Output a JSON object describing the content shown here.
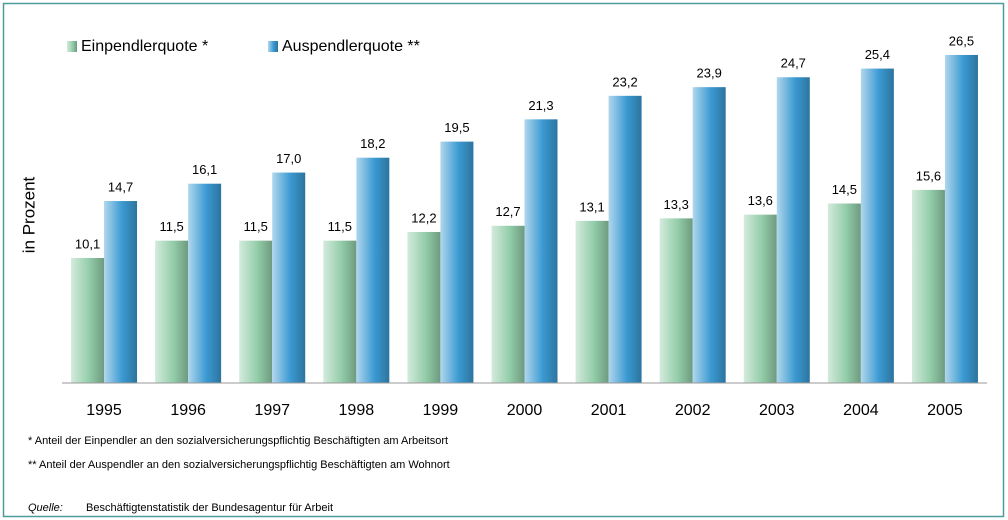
{
  "chart_data": {
    "type": "bar",
    "y_label": "in Prozent",
    "categories": [
      "1995",
      "1996",
      "1997",
      "1998",
      "1999",
      "2000",
      "2001",
      "2002",
      "2003",
      "2004",
      "2005"
    ],
    "series": [
      {
        "name": "Einpendlerquote *",
        "color": "#93cda9",
        "values": [
          10.1,
          11.5,
          11.5,
          11.5,
          12.2,
          12.7,
          13.1,
          13.3,
          13.6,
          14.5,
          15.6
        ],
        "value_labels": [
          "10,1",
          "11,5",
          "11,5",
          "11,5",
          "12,2",
          "12,7",
          "13,1",
          "13,3",
          "13,6",
          "14,5",
          "15,6"
        ]
      },
      {
        "name": "Auspendlerquote **",
        "color": "#3b9ad2",
        "values": [
          14.7,
          16.1,
          17.0,
          18.2,
          19.5,
          21.3,
          23.2,
          23.9,
          24.7,
          25.4,
          26.5
        ],
        "value_labels": [
          "14,7",
          "16,1",
          "17,0",
          "18,2",
          "19,5",
          "21,3",
          "23,2",
          "23,9",
          "24,7",
          "25,4",
          "26,5"
        ]
      }
    ],
    "ylim": [
      0,
      28
    ],
    "grid": false,
    "legend": "top-left",
    "notes": [
      "*  Anteil der Einpendler an den sozialversicherungspflichtig Beschäftigten am Arbeitsort",
      "** Anteil der Auspendler an den sozialversicherungspflichtig Beschäftigten am Wohnort"
    ],
    "source_label": "Quelle:",
    "source": "Beschäftigtenstatistik der Bundesagentur für Arbeit"
  }
}
